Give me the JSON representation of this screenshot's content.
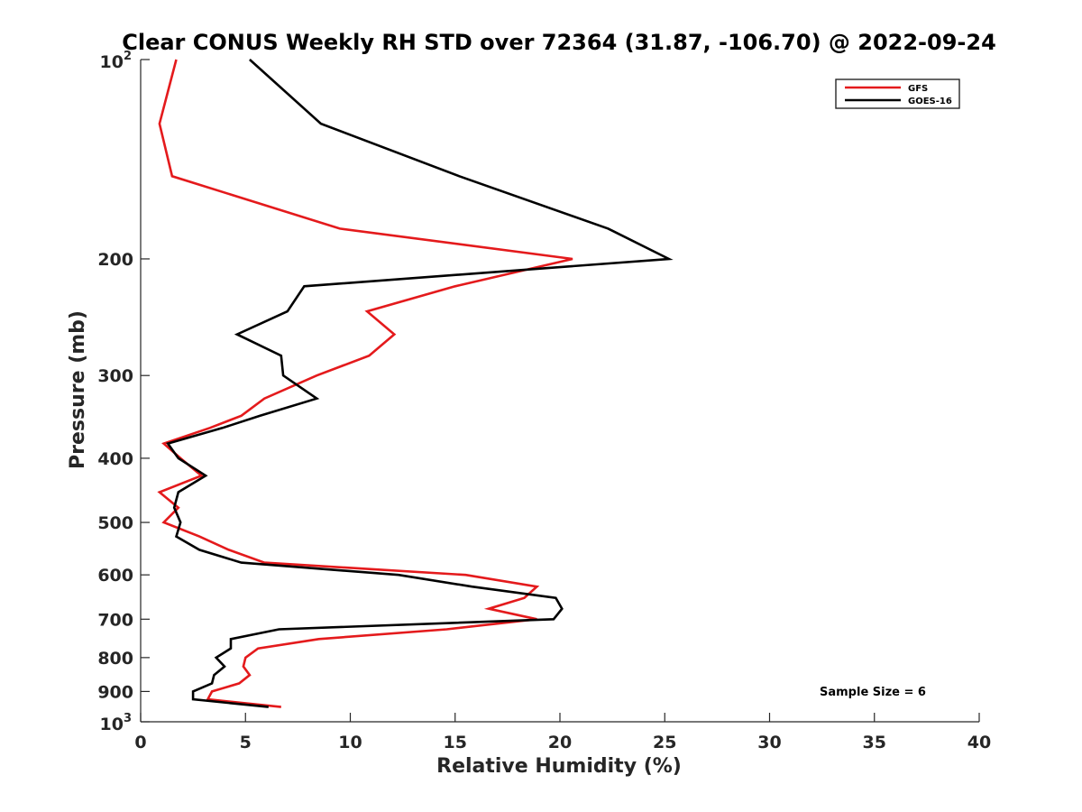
{
  "chart_data": {
    "type": "line",
    "title": "Clear CONUS Weekly RH STD over 72364 (31.87, -106.70) @ 2022-09-24",
    "xlabel": "Relative Humidity (%)",
    "ylabel": "Pressure (mb)",
    "xlim": [
      0,
      40
    ],
    "ylim": [
      100,
      1000
    ],
    "y_scale": "log",
    "y_reversed": true,
    "grid": false,
    "legend_placement": "top-right",
    "x_ticks": [
      "0",
      "5",
      "10",
      "15",
      "20",
      "25",
      "30",
      "35",
      "40"
    ],
    "y_ticks": [
      {
        "value": 100,
        "base": "10",
        "exp": "2"
      },
      {
        "value": 200,
        "label": "200"
      },
      {
        "value": 300,
        "label": "300"
      },
      {
        "value": 400,
        "label": "400"
      },
      {
        "value": 500,
        "label": "500"
      },
      {
        "value": 600,
        "label": "600"
      },
      {
        "value": 700,
        "label": "700"
      },
      {
        "value": 800,
        "label": "800"
      },
      {
        "value": 900,
        "label": "900"
      },
      {
        "value": 1000,
        "base": "10",
        "exp": "3"
      }
    ],
    "annotation": "Sample Size = 6",
    "series": [
      {
        "name": "GFS",
        "color": "#e41a1c",
        "points": [
          [
            1.7,
            100
          ],
          [
            0.9,
            125
          ],
          [
            1.5,
            150
          ],
          [
            9.5,
            180
          ],
          [
            20.6,
            200
          ],
          [
            15.0,
            220
          ],
          [
            10.8,
            240
          ],
          [
            12.1,
            260
          ],
          [
            10.9,
            280
          ],
          [
            8.4,
            300
          ],
          [
            5.9,
            325
          ],
          [
            4.8,
            345
          ],
          [
            3.3,
            360
          ],
          [
            1.1,
            380
          ],
          [
            1.9,
            400
          ],
          [
            2.9,
            425
          ],
          [
            0.9,
            450
          ],
          [
            1.8,
            475
          ],
          [
            1.1,
            500
          ],
          [
            2.8,
            525
          ],
          [
            4.2,
            550
          ],
          [
            5.9,
            575
          ],
          [
            15.5,
            600
          ],
          [
            18.9,
            625
          ],
          [
            18.3,
            650
          ],
          [
            16.6,
            675
          ],
          [
            18.9,
            700
          ],
          [
            14.6,
            725
          ],
          [
            8.5,
            750
          ],
          [
            5.6,
            775
          ],
          [
            5.0,
            800
          ],
          [
            4.9,
            825
          ],
          [
            5.2,
            850
          ],
          [
            4.7,
            875
          ],
          [
            3.4,
            900
          ],
          [
            3.2,
            925
          ],
          [
            6.7,
            950
          ]
        ]
      },
      {
        "name": "GOES-16",
        "color": "#000000",
        "points": [
          [
            5.2,
            100
          ],
          [
            8.6,
            125
          ],
          [
            15.2,
            150
          ],
          [
            22.3,
            180
          ],
          [
            25.2,
            200
          ],
          [
            7.8,
            220
          ],
          [
            7.0,
            240
          ],
          [
            4.6,
            260
          ],
          [
            6.7,
            280
          ],
          [
            6.8,
            300
          ],
          [
            8.4,
            325
          ],
          [
            5.7,
            345
          ],
          [
            3.9,
            360
          ],
          [
            1.3,
            380
          ],
          [
            1.8,
            400
          ],
          [
            3.1,
            425
          ],
          [
            1.8,
            450
          ],
          [
            1.6,
            475
          ],
          [
            1.9,
            500
          ],
          [
            1.7,
            525
          ],
          [
            2.8,
            550
          ],
          [
            4.8,
            575
          ],
          [
            12.3,
            600
          ],
          [
            15.8,
            625
          ],
          [
            19.8,
            650
          ],
          [
            20.1,
            675
          ],
          [
            19.7,
            700
          ],
          [
            6.6,
            725
          ],
          [
            4.3,
            750
          ],
          [
            4.3,
            775
          ],
          [
            3.6,
            800
          ],
          [
            4.0,
            825
          ],
          [
            3.5,
            850
          ],
          [
            3.4,
            875
          ],
          [
            2.5,
            900
          ],
          [
            2.5,
            925
          ],
          [
            6.1,
            950
          ]
        ]
      }
    ]
  }
}
